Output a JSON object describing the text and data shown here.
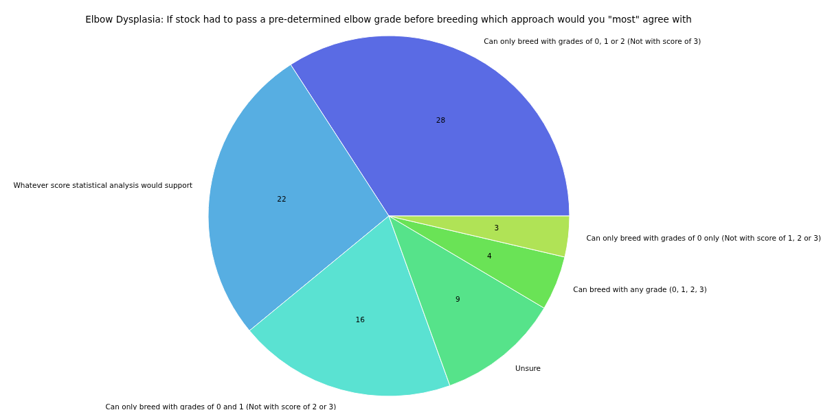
{
  "chart_data": {
    "type": "pie",
    "title": "Elbow Dysplasia: If stock had to pass a pre-determined elbow grade before breeding which approach would you \"most\" agree with",
    "categories": [
      "Can only breed with grades of 0, 1 or 2 (Not with score of 3)",
      "Whatever score statistical analysis would support",
      "Can only breed with grades of 0 and 1 (Not with score of 2 or 3)",
      "Unsure",
      "Can breed with any grade (0, 1, 2, 3)",
      "Can only breed with grades of 0 only (Not with score of 1, 2 or 3)"
    ],
    "values": [
      28,
      22,
      16,
      9,
      4,
      3
    ],
    "colors": [
      "#5a6be4",
      "#57aee2",
      "#5ae2d2",
      "#56e38a",
      "#6ae356",
      "#b0e356"
    ],
    "data_labels": true,
    "legend": false
  }
}
